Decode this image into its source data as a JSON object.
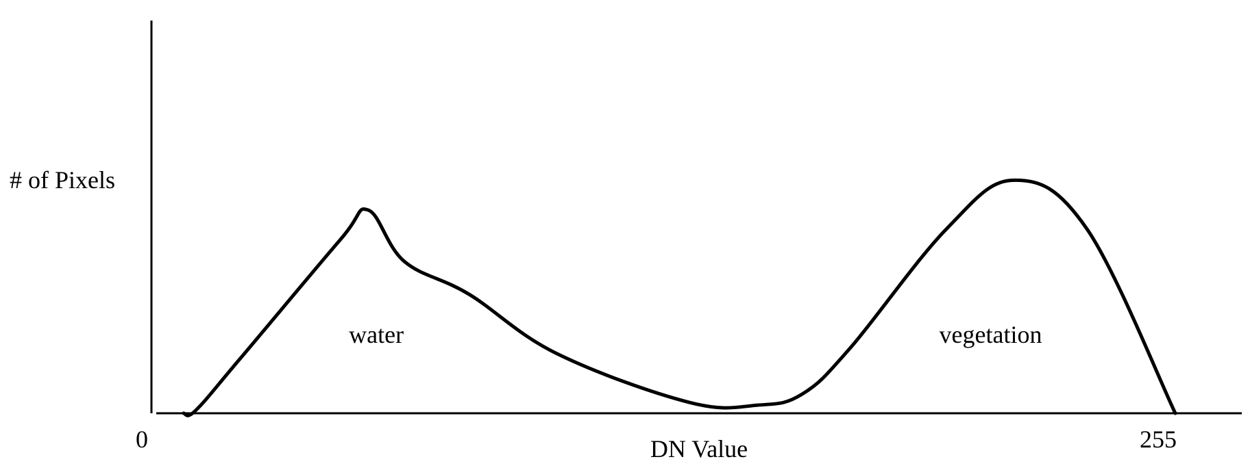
{
  "chart_data": {
    "type": "line",
    "title": "",
    "xlabel": "DN Value",
    "ylabel": "# of Pixels",
    "x_tick_labels": [
      "0",
      "255"
    ],
    "xlim": [
      0,
      280
    ],
    "ylim": [
      0,
      100
    ],
    "grid": false,
    "colors": {
      "line": "#000000",
      "axes": "#000000",
      "background": "#ffffff"
    },
    "annotations": [
      {
        "text": "water",
        "x": 56,
        "y": 26
      },
      {
        "text": "vegetation",
        "x": 209,
        "y": 26
      }
    ],
    "series": [
      {
        "x": [
          8,
          11,
          22,
          47,
          54,
          63,
          79,
          101,
          134,
          151,
          162,
          174,
          198,
          215,
          233,
          255
        ],
        "y": [
          0,
          1,
          20,
          64,
          75,
          56,
          44,
          22,
          4,
          3,
          7,
          24,
          68,
          86,
          68,
          0
        ]
      }
    ]
  }
}
